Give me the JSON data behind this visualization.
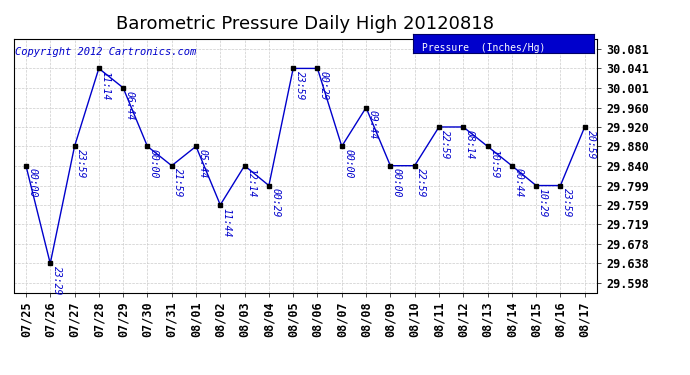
{
  "title": "Barometric Pressure Daily High 20120818",
  "copyright": "Copyright 2012 Cartronics.com",
  "legend_label": "Pressure  (Inches/Hg)",
  "dates": [
    "07/25",
    "07/26",
    "07/27",
    "07/28",
    "07/29",
    "07/30",
    "07/31",
    "08/01",
    "08/02",
    "08/03",
    "08/04",
    "08/05",
    "08/06",
    "08/07",
    "08/08",
    "08/09",
    "08/10",
    "08/11",
    "08/12",
    "08/13",
    "08/14",
    "08/15",
    "08/16",
    "08/17"
  ],
  "values": [
    29.84,
    29.638,
    29.88,
    30.041,
    30.001,
    29.88,
    29.84,
    29.88,
    29.759,
    29.84,
    29.799,
    30.041,
    30.041,
    29.88,
    29.96,
    29.84,
    29.84,
    29.92,
    29.92,
    29.88,
    29.84,
    29.799,
    29.799,
    29.92
  ],
  "labels": [
    "00:00",
    "23:29",
    "23:59",
    "11:14",
    "06:44",
    "00:00",
    "21:59",
    "05:44",
    "11:44",
    "12:14",
    "00:29",
    "23:59",
    "00:29",
    "00:00",
    "09:44",
    "00:00",
    "22:59",
    "22:59",
    "08:14",
    "10:59",
    "00:44",
    "10:29",
    "23:59",
    "20:59"
  ],
  "yticks": [
    29.598,
    29.638,
    29.678,
    29.719,
    29.759,
    29.799,
    29.84,
    29.88,
    29.92,
    29.96,
    30.001,
    30.041,
    30.081
  ],
  "line_color": "#0000cc",
  "marker_color": "#000000",
  "background_color": "#ffffff",
  "grid_color": "#cccccc",
  "legend_bg": "#0000cc",
  "legend_text_color": "#ffffff",
  "title_fontsize": 13,
  "label_fontsize": 7,
  "copyright_fontsize": 7.5,
  "tick_fontsize": 8.5,
  "ymin": 29.578,
  "ymax": 30.101
}
